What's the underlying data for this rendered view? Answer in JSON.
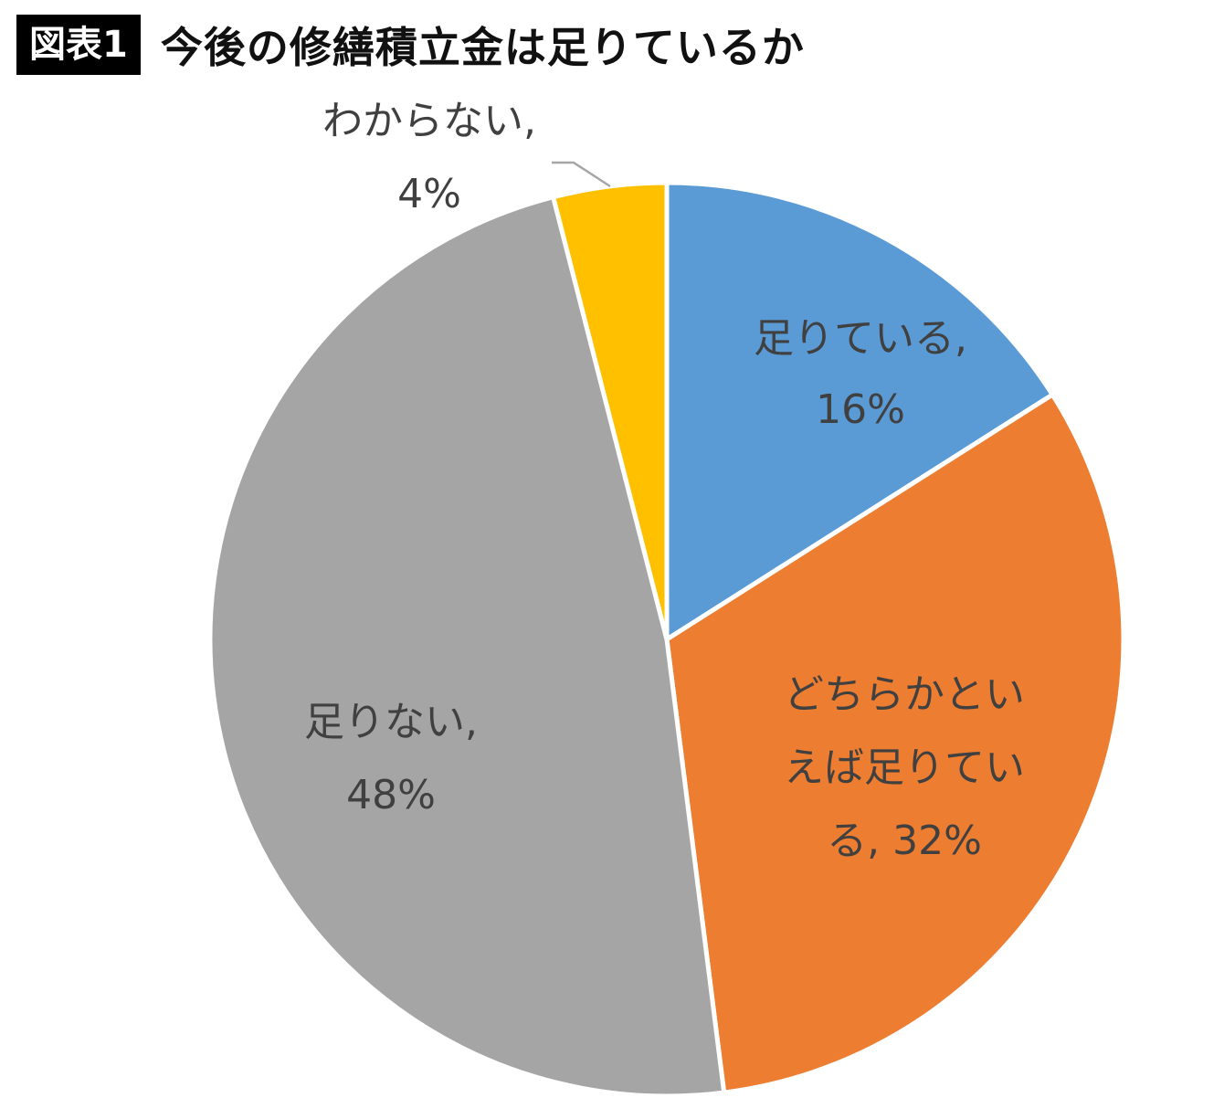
{
  "header": {
    "badge": "図表1",
    "title": "今後の修繕積立金は足りているか"
  },
  "chart_data": {
    "type": "pie",
    "title": "今後の修繕積立金は足りているか",
    "start_angle_deg": 0,
    "direction": "clockwise",
    "slices": [
      {
        "name": "足りている",
        "value": 16,
        "color": "#5B9BD5",
        "label_lines": [
          "足りている,",
          "16%"
        ]
      },
      {
        "name": "どちらかといえば足りている",
        "value": 32,
        "color": "#ED7D31",
        "label_lines": [
          "どちらかとい",
          "えば足りてい",
          "る, 32%"
        ]
      },
      {
        "name": "足りない",
        "value": 48,
        "color": "#A5A5A5",
        "label_lines": [
          "足りない,",
          "48%"
        ]
      },
      {
        "name": "わからない",
        "value": 4,
        "color": "#FFC000",
        "label_lines": [
          "わからない,",
          "4%"
        ]
      }
    ],
    "legend": "none"
  }
}
